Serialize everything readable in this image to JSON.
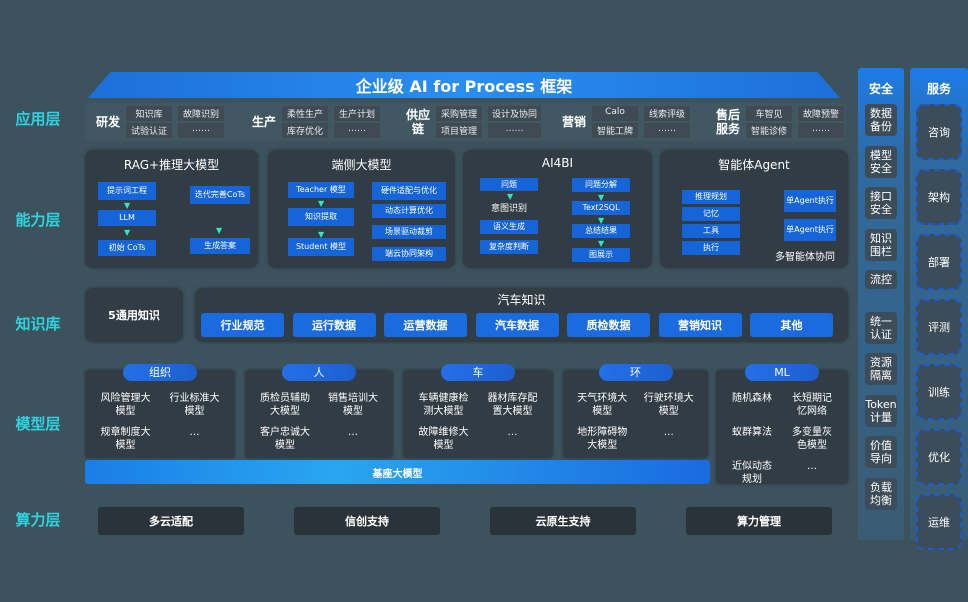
{
  "title": "企业级 AI for Process 框架",
  "row_labels": [
    "应用层",
    "能力层",
    "知识库",
    "模型层",
    "算力层"
  ],
  "app_groups": [
    {
      "name": "研发",
      "items": [
        "知识库",
        "故障识别",
        "试验认证",
        "……"
      ]
    },
    {
      "name": "生产",
      "items": [
        "柔性生产",
        "生产计划",
        "库存优化",
        "……"
      ]
    },
    {
      "name": "供应链",
      "items": [
        "采购管理",
        "设计及协同",
        "项目管理",
        "……"
      ]
    },
    {
      "name": "营销",
      "items": [
        "Calo",
        "线索评级",
        "智能工牌",
        "……"
      ]
    },
    {
      "name": "售后服务",
      "items": [
        "车智见",
        "故障预警",
        "智能诊修",
        "……"
      ]
    }
  ],
  "capability": {
    "rag": {
      "title": "RAG+推理大模型",
      "left": [
        "提示词工程",
        "LLM",
        "初始 CoTs"
      ],
      "right": [
        "迭代完善CoTs",
        "生成答案"
      ]
    },
    "edge": {
      "title": "端侧大模型",
      "left": [
        "Teacher 模型",
        "知识提取",
        "Student 模型"
      ],
      "right": [
        "硬件适配与优化",
        "动态计算优化",
        "场景驱动裁剪",
        "端云协同架构"
      ]
    },
    "ai4bi": {
      "title": "AI4BI",
      "left": [
        "问题",
        "意图识别",
        "语义生成",
        "复杂度判断"
      ],
      "right": [
        "问题分解",
        "Text2SQL",
        "总结结果",
        "图展示"
      ]
    },
    "agent": {
      "title": "智能体Agent",
      "left": [
        "推理规划",
        "记忆",
        "工具",
        "执行"
      ],
      "right": [
        "单Agent执行",
        "单Agent执行"
      ],
      "footer": "多智能体协同"
    }
  },
  "knowledge": {
    "general": "5通用知识",
    "auto_title": "汽车知识",
    "items": [
      "行业规范",
      "运行数据",
      "运营数据",
      "汽车数据",
      "质检数据",
      "营销知识",
      "其他"
    ]
  },
  "models": [
    {
      "tag": "组织",
      "items": [
        "风险管理大模型",
        "行业标准大模型",
        "规章制度大模型",
        "…"
      ]
    },
    {
      "tag": "人",
      "items": [
        "质检员辅助大模型",
        "销售培训大模型",
        "客户忠诚大模型",
        "…"
      ]
    },
    {
      "tag": "车",
      "items": [
        "车辆健康检测大模型",
        "器材库存配置大模型",
        "故障维修大模型",
        "…"
      ]
    },
    {
      "tag": "环",
      "items": [
        "天气环境大模型",
        "行驶环境大模型",
        "地形障碍物大模型",
        "…"
      ]
    },
    {
      "tag": "ML",
      "items": [
        "随机森林",
        "长短期记忆网络",
        "蚁群算法",
        "多变量灰色模型",
        "近似动态规划",
        "…"
      ]
    }
  ],
  "base_model": "基座大模型",
  "compute": [
    "多云适配",
    "信创支持",
    "云原生支持",
    "算力管理"
  ],
  "security": {
    "title": "安全",
    "items": [
      "数据备份",
      "模型安全",
      "接口安全",
      "知识围栏",
      "流控",
      "统一认证",
      "资源隔离",
      "Token计量",
      "价值导向",
      "负载均衡"
    ]
  },
  "services": {
    "title": "服务",
    "items": [
      "咨询",
      "架构",
      "部署",
      "评测",
      "训练",
      "优化",
      "运维"
    ]
  },
  "colors": {
    "accent": "#1a6ae0",
    "label": "#2fd3e0",
    "background": "#3c535e"
  }
}
